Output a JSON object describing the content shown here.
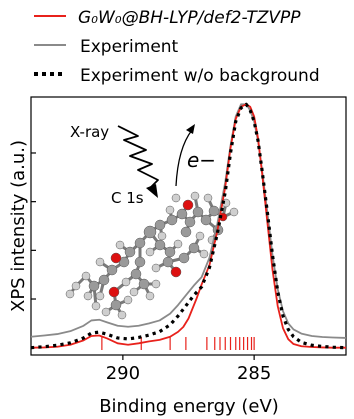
{
  "legend": {
    "entries": [
      {
        "label": "G₀W₀@BH-LYP/def2-TZVPP",
        "color": "#e8211b",
        "style": "solid"
      },
      {
        "label": "Experiment",
        "color": "#8a8a8a",
        "style": "solid"
      },
      {
        "label": "Experiment w/o background",
        "color": "#000000",
        "style": "dotted"
      }
    ]
  },
  "inset": {
    "xray_label": "X-ray",
    "electron_label": "e−",
    "core_label": "C 1s"
  },
  "chart_data": {
    "type": "line",
    "title": "",
    "xlabel": "Binding energy (eV)",
    "ylabel": "XPS intensity (a.u.)",
    "xlim": [
      293.5,
      281.5
    ],
    "x_reversed": true,
    "x_ticks": [
      290,
      285
    ],
    "x_tick_labels": [
      "290",
      "285"
    ],
    "y_ticks": [
      0.2,
      0.4,
      0.6,
      0.8
    ],
    "ylim": [
      -0.03,
      1.03
    ],
    "grid": false,
    "series": [
      {
        "name": "G₀W₀@BH-LYP/def2-TZVPP",
        "color": "#e8211b",
        "x": [
          293.5,
          293.0,
          292.5,
          292.0,
          291.5,
          291.2,
          290.9,
          290.6,
          290.2,
          289.8,
          289.4,
          289.0,
          288.6,
          288.2,
          287.9,
          287.7,
          287.5,
          287.2,
          287.0,
          286.7,
          286.4,
          286.1,
          285.9,
          285.7,
          285.5,
          285.3,
          285.15,
          285.0,
          284.85,
          284.7,
          284.5,
          284.3,
          284.1,
          283.9,
          283.7,
          283.5,
          283.2,
          282.8,
          282.4,
          282.0,
          281.5
        ],
        "y": [
          0.0,
          0.001,
          0.004,
          0.012,
          0.03,
          0.048,
          0.05,
          0.038,
          0.018,
          0.012,
          0.018,
          0.026,
          0.032,
          0.045,
          0.065,
          0.085,
          0.12,
          0.2,
          0.26,
          0.34,
          0.48,
          0.66,
          0.82,
          0.94,
          0.99,
          1.0,
          0.99,
          0.95,
          0.86,
          0.72,
          0.52,
          0.32,
          0.17,
          0.08,
          0.035,
          0.015,
          0.006,
          0.003,
          0.001,
          0.0,
          0.0
        ]
      },
      {
        "name": "Experiment",
        "color": "#8a8a8a",
        "x": [
          293.5,
          293.0,
          292.5,
          292.0,
          291.5,
          291.2,
          290.9,
          290.6,
          290.2,
          289.8,
          289.4,
          289.0,
          288.6,
          288.2,
          287.9,
          287.6,
          287.3,
          287.0,
          286.7,
          286.4,
          286.1,
          285.9,
          285.7,
          285.5,
          285.3,
          285.15,
          285.0,
          284.85,
          284.7,
          284.5,
          284.3,
          284.1,
          283.9,
          283.7,
          283.5,
          283.2,
          282.8,
          282.4,
          282.0,
          281.5
        ],
        "y": [
          0.045,
          0.05,
          0.056,
          0.068,
          0.09,
          0.112,
          0.115,
          0.104,
          0.09,
          0.086,
          0.09,
          0.1,
          0.112,
          0.14,
          0.175,
          0.215,
          0.255,
          0.29,
          0.37,
          0.51,
          0.68,
          0.83,
          0.95,
          1.0,
          1.0,
          0.975,
          0.93,
          0.85,
          0.73,
          0.56,
          0.38,
          0.24,
          0.15,
          0.1,
          0.075,
          0.058,
          0.048,
          0.044,
          0.042,
          0.04
        ]
      },
      {
        "name": "Experiment w/o background",
        "color": "#000000",
        "x": [
          293.5,
          293.0,
          292.5,
          292.0,
          291.5,
          291.2,
          290.9,
          290.6,
          290.2,
          289.8,
          289.4,
          289.0,
          288.6,
          288.2,
          287.9,
          287.6,
          287.3,
          287.0,
          286.7,
          286.4,
          286.1,
          285.9,
          285.7,
          285.5,
          285.3,
          285.15,
          285.0,
          284.85,
          284.7,
          284.5,
          284.3,
          284.1,
          283.9,
          283.7,
          283.5,
          283.2,
          282.8,
          282.4,
          282.0,
          281.5
        ],
        "y": [
          0.0,
          0.004,
          0.01,
          0.02,
          0.04,
          0.06,
          0.064,
          0.055,
          0.04,
          0.036,
          0.042,
          0.052,
          0.066,
          0.094,
          0.13,
          0.172,
          0.215,
          0.25,
          0.33,
          0.47,
          0.64,
          0.8,
          0.93,
          0.985,
          1.0,
          0.975,
          0.93,
          0.85,
          0.73,
          0.56,
          0.38,
          0.23,
          0.13,
          0.075,
          0.045,
          0.022,
          0.01,
          0.005,
          0.002,
          0.0
        ]
      }
    ],
    "stick_marks": {
      "color": "#e8211b",
      "x": [
        290.8,
        289.3,
        288.2,
        287.6,
        286.8,
        286.5,
        286.3,
        286.1,
        285.9,
        285.7,
        285.55,
        285.4,
        285.25,
        285.1,
        285.0
      ]
    }
  }
}
